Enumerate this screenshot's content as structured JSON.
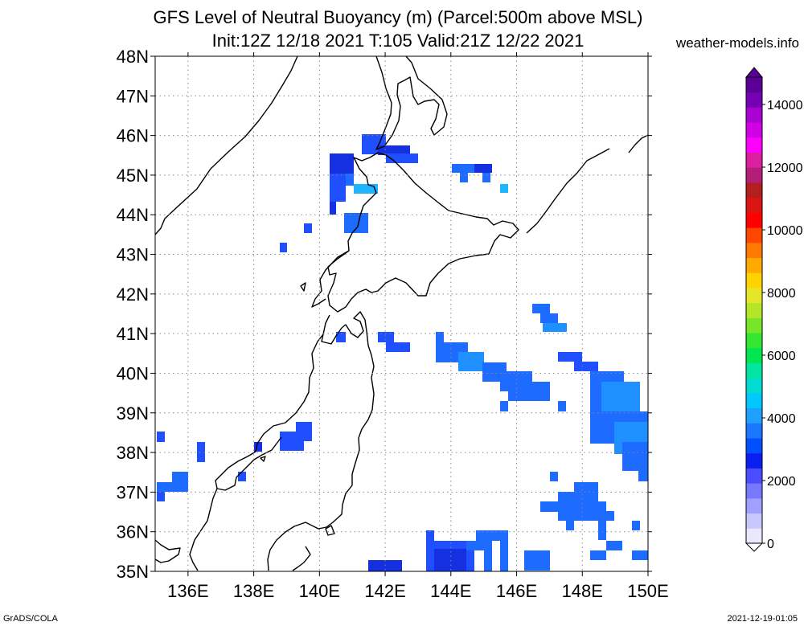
{
  "title": {
    "line1": "GFS Level of Neutral Buoyancy (m) (Parcel:500m above MSL)",
    "line2": "Init:12Z 12/18 2021 T:105 Valid:21Z 12/22 2021"
  },
  "credit": "weather-models.info",
  "footer": {
    "left": "GrADS/COLA",
    "right": "2021-12-19-01:05"
  },
  "axes": {
    "lon_labels": [
      "136E",
      "138E",
      "140E",
      "142E",
      "144E",
      "146E",
      "148E",
      "150E"
    ],
    "lat_labels": [
      "35N",
      "36N",
      "37N",
      "38N",
      "39N",
      "40N",
      "41N",
      "42N",
      "43N",
      "44N",
      "45N",
      "46N",
      "47N",
      "48N"
    ],
    "lon_range": [
      135,
      150
    ],
    "lat_range": [
      35,
      48
    ]
  },
  "colorbar": {
    "labels": [
      "0",
      "2000",
      "4000",
      "6000",
      "8000",
      "10000",
      "12000",
      "14000"
    ],
    "colors": [
      "#e8e8ff",
      "#c8c8ff",
      "#a0a0ff",
      "#7878ff",
      "#4b4bff",
      "#0a1ef0",
      "#0050ff",
      "#1a78ff",
      "#1ea0ff",
      "#00c8ff",
      "#00dcd2",
      "#00e6a0",
      "#00e650",
      "#32e632",
      "#78e628",
      "#b4e628",
      "#e6e628",
      "#ffd200",
      "#ffaa00",
      "#ff7800",
      "#ff4600",
      "#ff0000",
      "#dc1414",
      "#b41e1e",
      "#b41e78",
      "#dc1ea0",
      "#ff00ff",
      "#d200e6",
      "#aa00d2",
      "#7800b4",
      "#5a0096"
    ]
  },
  "colors": {
    "blue_dark": "#1430e0",
    "blue": "#1f4fff",
    "blue_mid": "#1e6cff",
    "blue_light": "#1e90ff",
    "cyan": "#1eb4ff"
  }
}
